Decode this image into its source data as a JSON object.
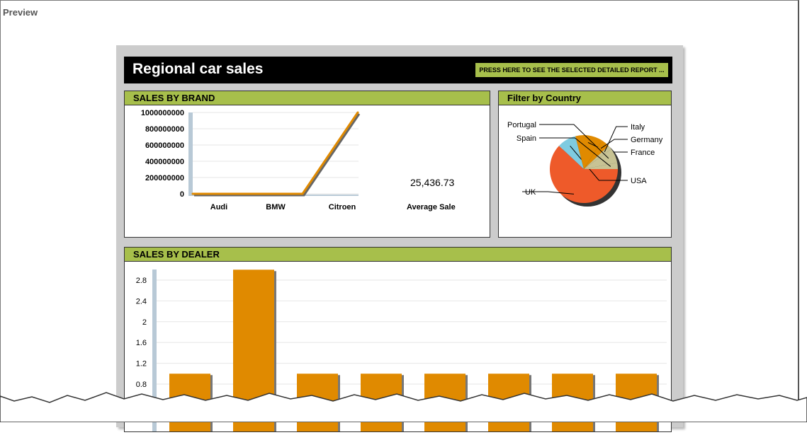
{
  "window": {
    "label": "Preview"
  },
  "header": {
    "title": "Regional car sales",
    "report_button": "PRESS HERE TO SEE THE SELECTED DETAILED REPORT ..."
  },
  "sales_by_brand": {
    "title": "SALES BY BRAND",
    "average_value": "25,436.73",
    "average_label": "Average Sale"
  },
  "filter_by_country": {
    "title": "Filter by Country"
  },
  "sales_by_dealer": {
    "title": "SALES BY DEALER"
  },
  "colors": {
    "accent": "#a7bf4b",
    "series": "#e08a00",
    "uk": "#ee5a2a",
    "usa": "#7fcbe0",
    "italy": "#c8c394"
  },
  "chart_data": [
    {
      "type": "line",
      "categories": [
        "Audi",
        "BMW",
        "Citroen"
      ],
      "series": [
        {
          "values": [
            0,
            0,
            1000000000
          ]
        }
      ],
      "ylim": [
        0,
        1000000000
      ],
      "yticks": [
        "0",
        "200000000",
        "400000000",
        "600000000",
        "800000000",
        "1000000000"
      ],
      "grid": true
    },
    {
      "type": "pie",
      "slices": [
        {
          "label": "UK",
          "value": 62,
          "color": "#ee5a2a"
        },
        {
          "label": "USA",
          "value": 9,
          "color": "#7fcbe0"
        },
        {
          "label": "France",
          "value": 13,
          "color": "#e08a00"
        },
        {
          "label": "Germany",
          "value": 4,
          "color": "#e08a00"
        },
        {
          "label": "Italy",
          "value": 2,
          "color": "#c8c394"
        },
        {
          "label": "Portugal",
          "value": 7,
          "color": "#c8c394"
        },
        {
          "label": "Spain",
          "value": 3,
          "color": "#c8c394"
        }
      ]
    },
    {
      "type": "bar",
      "values": [
        1,
        3,
        1,
        1,
        1,
        1,
        1,
        1
      ],
      "yticks": [
        "0.8",
        "1.2",
        "1.6",
        "2",
        "2.4",
        "2.8"
      ],
      "grid": true
    }
  ]
}
